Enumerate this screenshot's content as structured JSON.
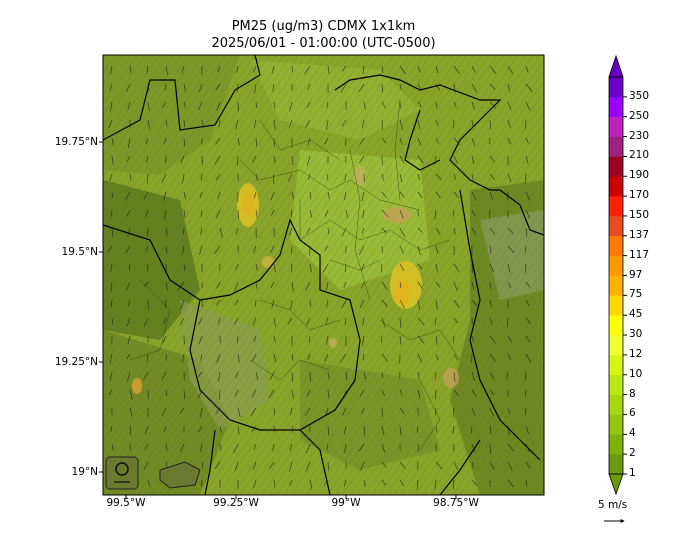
{
  "title": {
    "line1": "PM25 (ug/m3) CDMX 1x1km",
    "line2": "2025/06/01 - 01:00:00 (UTC-0500)"
  },
  "axes": {
    "lat_labels": [
      "19.75°N",
      "19.5°N",
      "19.25°N",
      "19°N"
    ],
    "lon_labels": [
      "99.5°W",
      "99.25°W",
      "99°W",
      "98.75°W"
    ]
  },
  "colorbar": {
    "levels": [
      "1",
      "2",
      "4",
      "6",
      "8",
      "10",
      "12",
      "30",
      "45",
      "75",
      "97",
      "117",
      "137",
      "150",
      "170",
      "190",
      "210",
      "230",
      "250",
      "350"
    ],
    "colors": [
      "#6b9a0a",
      "#7fb10c",
      "#92c60e",
      "#a6d80f",
      "#b8e812",
      "#d6f510",
      "#f2ff33",
      "#ffff00",
      "#ffd700",
      "#ffb300",
      "#ff9a00",
      "#ff7a00",
      "#e84c1f",
      "#ff2000",
      "#d00000",
      "#a00020",
      "#a02080",
      "#c020c0",
      "#9b00ff",
      "#6a00c8"
    ],
    "extend": "both"
  },
  "wind_key": {
    "label": "5 m/s"
  },
  "map": {
    "base_color": "#8aa32a",
    "hotspot_color": "#d9c024",
    "boundary_color": "#000000"
  }
}
